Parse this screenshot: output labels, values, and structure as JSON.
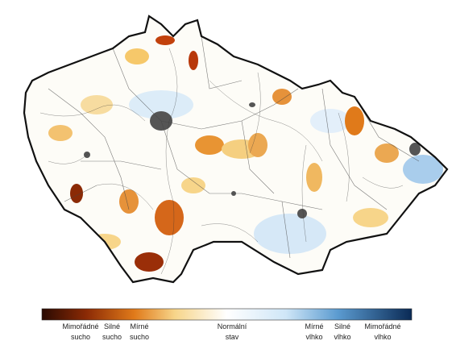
{
  "legend": {
    "items": [
      {
        "lines": [
          "Mimořádné",
          "sucho"
        ]
      },
      {
        "lines": [
          "Silné",
          "sucho"
        ]
      },
      {
        "lines": [
          "Mírné",
          "sucho"
        ]
      },
      {
        "lines": [
          "Normální",
          "stav"
        ]
      },
      {
        "lines": [
          "Mírné",
          "vlhko"
        ]
      },
      {
        "lines": [
          "Silné",
          "vlhko"
        ]
      },
      {
        "lines": [
          "Mimořádné",
          "vlhko"
        ]
      }
    ]
  }
}
